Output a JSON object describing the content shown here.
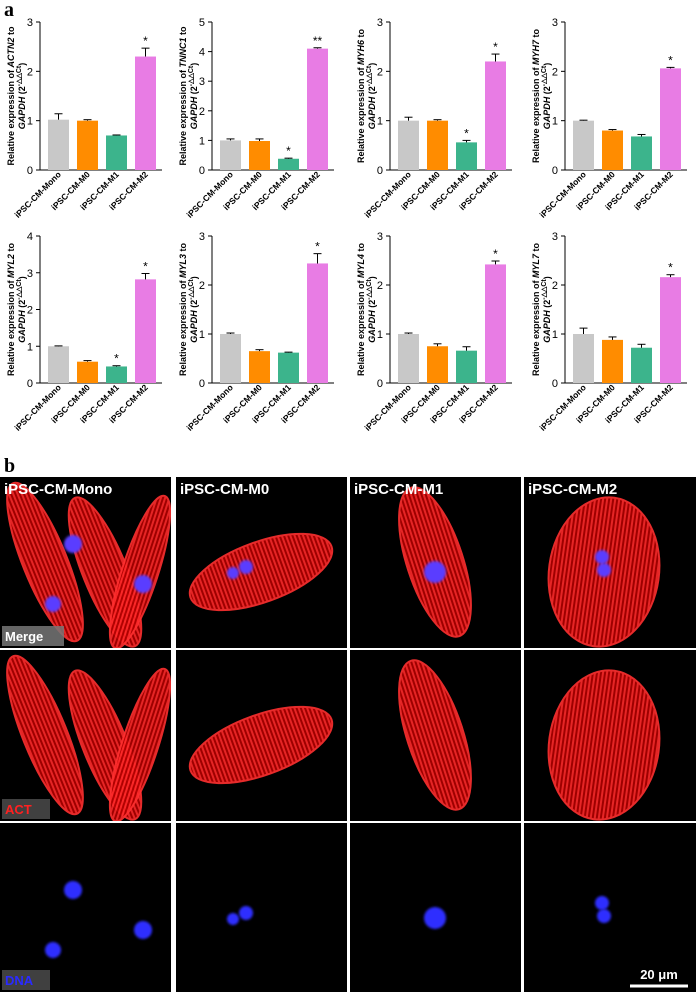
{
  "panel_a_label": "a",
  "panel_b_label": "b",
  "categories": [
    "iPSC-CM-Mono",
    "iPSC-CM-M0",
    "iPSC-CM-M1",
    "iPSC-CM-M2"
  ],
  "bar_colors": [
    "#c8c8c8",
    "#ff8c00",
    "#3cb48c",
    "#e87ce4"
  ],
  "ylabel_prefix": "Relative  expression of ",
  "ylabel_line2_gene": "GAPDH",
  "ylabel_line2_formula": " (2",
  "ylabel_superscript": "-△△Ct",
  "ylabel_close": ")",
  "ylabel_to": " to",
  "chart_data": [
    {
      "type": "bar",
      "gene": "ACTN2",
      "categories": [
        "iPSC-CM-Mono",
        "iPSC-CM-M0",
        "iPSC-CM-M1",
        "iPSC-CM-M2"
      ],
      "values": [
        1.02,
        1.0,
        0.7,
        2.3
      ],
      "errors": [
        0.12,
        0.02,
        0.01,
        0.17
      ],
      "significance": [
        "",
        "",
        "",
        "*"
      ],
      "ylim": [
        0,
        3
      ],
      "yticks": [
        0,
        1,
        2,
        3
      ]
    },
    {
      "type": "bar",
      "gene": "TNNC1",
      "categories": [
        "iPSC-CM-Mono",
        "iPSC-CM-M0",
        "iPSC-CM-M1",
        "iPSC-CM-M2"
      ],
      "values": [
        1.0,
        0.98,
        0.38,
        4.1
      ],
      "errors": [
        0.05,
        0.07,
        0.02,
        0.03
      ],
      "significance": [
        "",
        "",
        "*",
        "**"
      ],
      "ylim": [
        0,
        5
      ],
      "yticks": [
        0,
        1,
        2,
        3,
        4,
        5
      ]
    },
    {
      "type": "bar",
      "gene": "MYH6",
      "categories": [
        "iPSC-CM-Mono",
        "iPSC-CM-M0",
        "iPSC-CM-M1",
        "iPSC-CM-M2"
      ],
      "values": [
        1.0,
        1.0,
        0.56,
        2.2
      ],
      "errors": [
        0.07,
        0.02,
        0.04,
        0.15
      ],
      "significance": [
        "",
        "",
        "*",
        "*"
      ],
      "ylim": [
        0,
        3
      ],
      "yticks": [
        0,
        1,
        2,
        3
      ]
    },
    {
      "type": "bar",
      "gene": "MYH7",
      "categories": [
        "iPSC-CM-Mono",
        "iPSC-CM-M0",
        "iPSC-CM-M1",
        "iPSC-CM-M2"
      ],
      "values": [
        1.0,
        0.8,
        0.68,
        2.06
      ],
      "errors": [
        0.01,
        0.02,
        0.04,
        0.02
      ],
      "significance": [
        "",
        "",
        "",
        "*"
      ],
      "ylim": [
        0,
        3
      ],
      "yticks": [
        0,
        1,
        2,
        3
      ]
    },
    {
      "type": "bar",
      "gene": "MYL2",
      "categories": [
        "iPSC-CM-Mono",
        "iPSC-CM-M0",
        "iPSC-CM-M1",
        "iPSC-CM-M2"
      ],
      "values": [
        1.0,
        0.58,
        0.45,
        2.82
      ],
      "errors": [
        0.01,
        0.03,
        0.02,
        0.16
      ],
      "significance": [
        "",
        "",
        "*",
        "*"
      ],
      "ylim": [
        0,
        4
      ],
      "yticks": [
        0,
        1,
        2,
        3,
        4
      ]
    },
    {
      "type": "bar",
      "gene": "MYL3",
      "categories": [
        "iPSC-CM-Mono",
        "iPSC-CM-M0",
        "iPSC-CM-M1",
        "iPSC-CM-M2"
      ],
      "values": [
        1.0,
        0.65,
        0.62,
        2.44
      ],
      "errors": [
        0.02,
        0.03,
        0.01,
        0.2
      ],
      "significance": [
        "",
        "",
        "",
        "*"
      ],
      "ylim": [
        0,
        3
      ],
      "yticks": [
        0,
        1,
        2,
        3
      ]
    },
    {
      "type": "bar",
      "gene": "MYL4",
      "categories": [
        "iPSC-CM-Mono",
        "iPSC-CM-M0",
        "iPSC-CM-M1",
        "iPSC-CM-M2"
      ],
      "values": [
        1.0,
        0.75,
        0.66,
        2.42
      ],
      "errors": [
        0.02,
        0.05,
        0.08,
        0.07
      ],
      "significance": [
        "",
        "",
        "",
        "*"
      ],
      "ylim": [
        0,
        3
      ],
      "yticks": [
        0,
        1,
        2,
        3
      ]
    },
    {
      "type": "bar",
      "gene": "MYL7",
      "categories": [
        "iPSC-CM-Mono",
        "iPSC-CM-M0",
        "iPSC-CM-M1",
        "iPSC-CM-M2"
      ],
      "values": [
        1.0,
        0.88,
        0.72,
        2.16
      ],
      "errors": [
        0.12,
        0.06,
        0.07,
        0.05
      ],
      "significance": [
        "",
        "",
        "",
        "*"
      ],
      "ylim": [
        0,
        3
      ],
      "yticks": [
        0,
        1,
        2,
        3
      ]
    }
  ],
  "micrographs": {
    "columns": [
      "iPSC-CM-Mono",
      "iPSC-CM-M0",
      "iPSC-CM-M1",
      "iPSC-CM-M2"
    ],
    "rows": [
      "Merge",
      "ACT",
      "DNA"
    ],
    "row_colors": [
      "#ffffff",
      "#ff2020",
      "#2a2aff"
    ],
    "scale_bar": "20 μm"
  }
}
